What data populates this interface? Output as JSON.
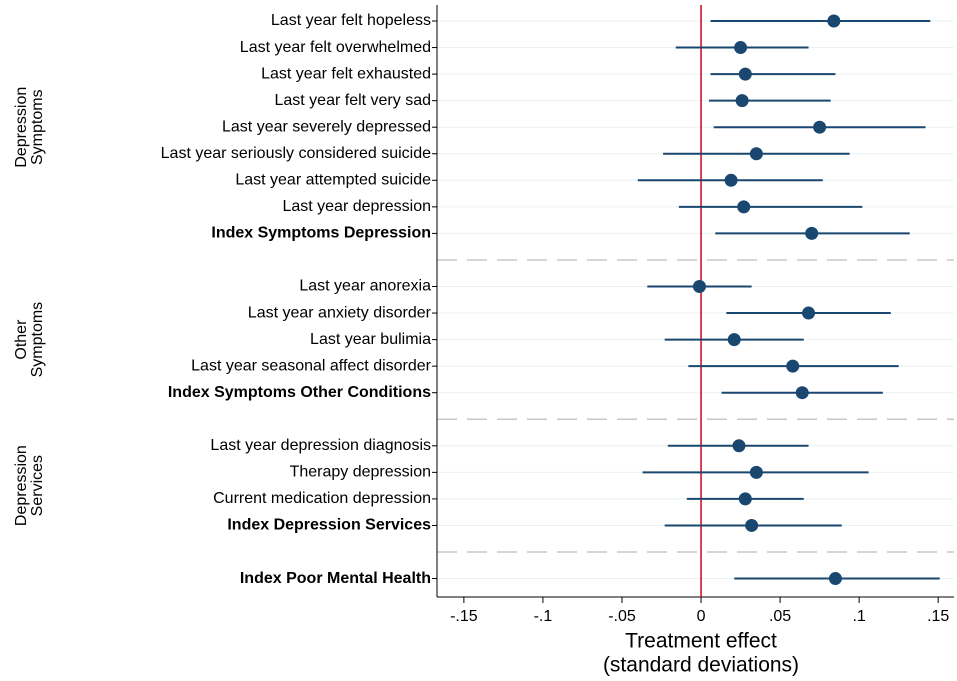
{
  "chart_data": {
    "type": "coefplot",
    "xlabel": [
      "Treatment effect",
      "(standard deviations)"
    ],
    "xlim": [
      -0.167,
      0.16
    ],
    "xticks": [
      {
        "value": -0.15,
        "label": "-.15"
      },
      {
        "value": -0.1,
        "label": "-.1"
      },
      {
        "value": -0.05,
        "label": "-.05"
      },
      0,
      {
        "value": 0.05,
        "label": ".05"
      },
      {
        "value": 0.1,
        "label": ".1"
      },
      {
        "value": 0.15,
        "label": ".15"
      }
    ],
    "refline": 0,
    "refline_color": "#d0021b",
    "color": "#1a476f",
    "grid": true,
    "groups": [
      {
        "label": [
          "Depression",
          "Symptoms"
        ],
        "items": [
          {
            "name": "Last year felt hopeless",
            "value": 0.084,
            "ci": [
              0.006,
              0.145
            ]
          },
          {
            "name": "Last year felt overwhelmed",
            "value": 0.025,
            "ci": [
              -0.016,
              0.068
            ]
          },
          {
            "name": "Last year felt exhausted",
            "value": 0.028,
            "ci": [
              0.006,
              0.085
            ]
          },
          {
            "name": "Last year felt very sad",
            "value": 0.026,
            "ci": [
              0.005,
              0.082
            ]
          },
          {
            "name": "Last year severely depressed",
            "value": 0.075,
            "ci": [
              0.008,
              0.142
            ]
          },
          {
            "name": "Last year seriously considered suicide",
            "value": 0.035,
            "ci": [
              -0.024,
              0.094
            ]
          },
          {
            "name": "Last year attempted suicide",
            "value": 0.019,
            "ci": [
              -0.04,
              0.077
            ]
          },
          {
            "name": "Last year depression",
            "value": 0.027,
            "ci": [
              -0.014,
              0.102
            ]
          }
        ],
        "index": {
          "name": "Index Symptoms Depression",
          "value": 0.07,
          "ci": [
            0.009,
            0.132
          ]
        }
      },
      {
        "label": [
          "Other",
          "Symptoms"
        ],
        "items": [
          {
            "name": "Last year anorexia",
            "value": -0.001,
            "ci": [
              -0.034,
              0.032
            ]
          },
          {
            "name": "Last year anxiety disorder",
            "value": 0.068,
            "ci": [
              0.016,
              0.12
            ]
          },
          {
            "name": "Last year bulimia",
            "value": 0.021,
            "ci": [
              -0.023,
              0.065
            ]
          },
          {
            "name": "Last year seasonal affect disorder",
            "value": 0.058,
            "ci": [
              -0.008,
              0.125
            ]
          }
        ],
        "index": {
          "name": "Index Symptoms Other Conditions",
          "value": 0.064,
          "ci": [
            0.013,
            0.115
          ]
        }
      },
      {
        "label": [
          "Depression",
          "Services"
        ],
        "items": [
          {
            "name": "Last year depression diagnosis",
            "value": 0.024,
            "ci": [
              -0.021,
              0.068
            ]
          },
          {
            "name": "Therapy depression",
            "value": 0.035,
            "ci": [
              -0.037,
              0.106
            ]
          },
          {
            "name": "Current medication depression",
            "value": 0.028,
            "ci": [
              -0.009,
              0.065
            ]
          }
        ],
        "index": {
          "name": "Index Depression Services",
          "value": 0.032,
          "ci": [
            -0.023,
            0.089
          ]
        }
      },
      {
        "items": [],
        "index": {
          "name": "Index Poor Mental Health",
          "value": 0.085,
          "ci": [
            0.021,
            0.151
          ]
        }
      }
    ]
  }
}
